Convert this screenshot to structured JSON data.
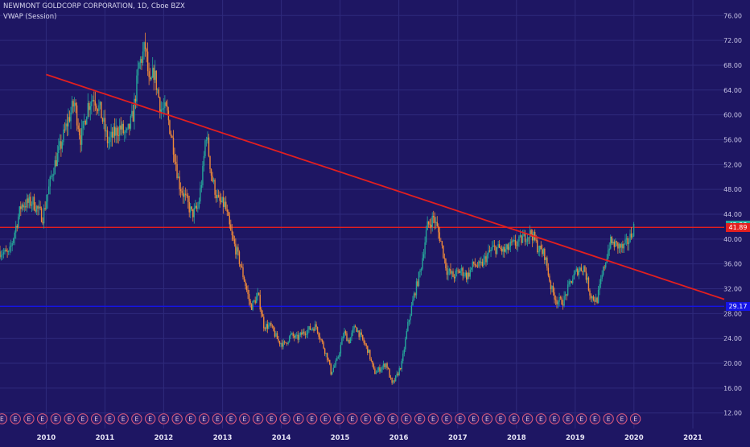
{
  "header": {
    "title": "NEWMONT GOLDCORP CORPORATION, 1D, Cboe BZX",
    "indicator": "VWAP (Session)"
  },
  "colors": {
    "background": "#1e1663",
    "grid": "#2f2a7c",
    "candle_up": "#26a69a",
    "candle_down": "#ef8a3a",
    "trendline": "#e31f1f",
    "hline_resistance": "#e31f1f",
    "hline_support": "#1515e6",
    "tag_current": "#26a69a",
    "tag_resistance": "#e31f1f",
    "tag_support": "#1515e6"
  },
  "chart_data": {
    "type": "line",
    "x_axis": {
      "type": "date",
      "range": [
        "2009-03-20",
        "2021-07-15"
      ],
      "tick_labels": [
        "2010",
        "2011",
        "2012",
        "2013",
        "2014",
        "2015",
        "2016",
        "2017",
        "2018",
        "2019",
        "2020",
        "2021"
      ]
    },
    "y_axis": {
      "range": [
        9.5,
        78.5
      ],
      "position": "right",
      "tick_labels": [
        "12.00",
        "16.00",
        "20.00",
        "24.00",
        "28.00",
        "32.00",
        "36.00",
        "40.00",
        "44.00",
        "48.00",
        "52.00",
        "56.00",
        "60.00",
        "64.00",
        "68.00",
        "72.00",
        "76.00"
      ]
    },
    "grid": true,
    "series": [
      {
        "style": "candlestick-approx",
        "x": [
          "2009-03-20",
          "2009-05-15",
          "2009-07-30",
          "2009-10-10",
          "2009-12-10",
          "2010-02-10",
          "2010-04-01",
          "2010-05-15",
          "2010-06-25",
          "2010-08-05",
          "2010-09-15",
          "2010-10-25",
          "2010-12-05",
          "2011-01-20",
          "2011-03-01",
          "2011-04-05",
          "2011-05-15",
          "2011-06-25",
          "2011-08-01",
          "2011-09-10",
          "2011-10-05",
          "2011-11-01",
          "2011-12-15",
          "2012-01-20",
          "2012-03-01",
          "2012-04-05",
          "2012-05-15",
          "2012-06-25",
          "2012-08-01",
          "2012-09-01",
          "2012-09-20",
          "2012-10-25",
          "2012-12-05",
          "2013-01-15",
          "2013-02-25",
          "2013-04-10",
          "2013-05-20",
          "2013-06-25",
          "2013-08-10",
          "2013-09-15",
          "2013-10-25",
          "2013-12-15",
          "2014-01-20",
          "2014-03-01",
          "2014-04-10",
          "2014-05-20",
          "2014-06-25",
          "2014-08-05",
          "2014-09-15",
          "2014-10-20",
          "2014-11-05",
          "2014-12-15",
          "2015-01-25",
          "2015-02-25",
          "2015-04-05",
          "2015-05-15",
          "2015-06-25",
          "2015-08-01",
          "2015-09-01",
          "2015-10-15",
          "2015-11-20",
          "2015-12-20",
          "2016-01-20",
          "2016-02-25",
          "2016-04-05",
          "2016-05-15",
          "2016-06-25",
          "2016-08-05",
          "2016-09-15",
          "2016-10-25",
          "2016-12-05",
          "2017-01-20",
          "2017-03-01",
          "2017-04-10",
          "2017-05-20",
          "2017-06-25",
          "2017-08-05",
          "2017-09-10",
          "2017-10-20",
          "2017-12-01",
          "2018-01-15",
          "2018-02-25",
          "2018-04-05",
          "2018-05-15",
          "2018-06-25",
          "2018-08-05",
          "2018-09-10",
          "2018-10-20",
          "2018-12-01",
          "2019-01-15",
          "2019-02-25",
          "2019-04-05",
          "2019-05-15",
          "2019-06-25",
          "2019-08-05",
          "2019-09-15",
          "2019-10-25",
          "2019-12-05",
          "2019-12-31"
        ],
        "y": [
          38,
          37.5,
          45.5,
          46,
          43.5,
          51,
          55,
          59,
          62,
          56,
          61.5,
          63,
          60.5,
          55.5,
          57,
          58,
          56.5,
          60,
          68,
          71,
          64,
          67,
          61,
          60.5,
          55,
          49,
          46.5,
          44,
          45,
          51,
          57.5,
          50,
          46,
          45.5,
          40.5,
          37,
          33,
          29,
          31,
          26,
          26,
          23.5,
          23,
          24.5,
          24,
          25,
          25.5,
          26,
          23,
          20.5,
          18.5,
          20.5,
          25,
          23.5,
          26,
          24,
          22,
          18.5,
          19,
          20,
          16.5,
          18,
          20,
          26,
          31,
          35,
          42,
          43.5,
          40,
          35,
          34,
          35,
          34,
          36,
          35.5,
          37,
          38.5,
          38.5,
          38,
          39,
          39.5,
          40.5,
          41,
          38.5,
          37.5,
          32,
          30,
          30,
          33,
          35,
          35.5,
          31,
          30,
          35,
          39.5,
          39,
          38.5,
          40,
          42
        ]
      }
    ],
    "horizontal_lines": [
      {
        "value": 41.89,
        "label": "41.89",
        "color": "#e31f1f"
      },
      {
        "value": 29.17,
        "label": "29.17",
        "color": "#1515e6"
      }
    ],
    "trendline": {
      "from": {
        "x": "2010-01-01",
        "y": 66.5
      },
      "to": {
        "x": "2021-07-15",
        "y": 30.3
      }
    },
    "current_price": {
      "value": 42.28,
      "label": "42.28"
    },
    "earnings_markers": {
      "label": "E",
      "count": 48,
      "range": [
        "2009-04-01",
        "2020-01-10"
      ]
    }
  }
}
